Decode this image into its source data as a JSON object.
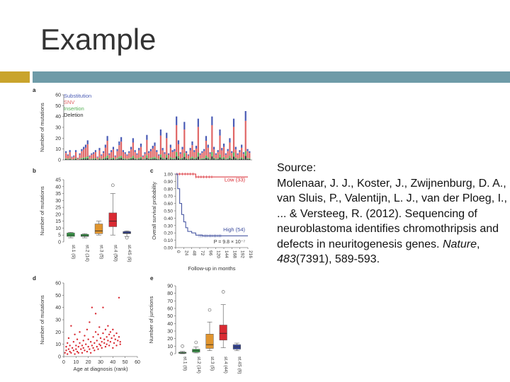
{
  "slide": {
    "title": "Example",
    "accent_colors": {
      "square": "#c9a42c",
      "bar": "#6e9ba8"
    }
  },
  "source": {
    "heading": "Source:",
    "citation_plain": "Molenaar, J. J., Koster, J., Zwijnenburg, D. A., van Sluis, P., Valentijn, L. J., van der Ploeg, I., ... & Versteeg, R. (2012). Sequencing of neuroblastoma identifies chromothripsis and defects in neuritogenesis genes.",
    "journal": "Nature",
    "volume": "483",
    "issue_pages": "(7391), 589-593."
  },
  "chart_data": [
    {
      "panel": "a",
      "type": "bar",
      "stacked": true,
      "ylabel": "Number of mutations",
      "ylim": [
        0,
        60
      ],
      "yticks": [
        0,
        10,
        20,
        30,
        40,
        50,
        60
      ],
      "legend_position": "top-left",
      "legend": [
        "Substitution",
        "SNV",
        "Insertion",
        "Deletion"
      ],
      "colors": {
        "Substitution": "#4a5bb5",
        "SNV": "#e06666",
        "Insertion": "#55b055",
        "Deletion": "#2a2a2a"
      },
      "totals": [
        8,
        5,
        9,
        3,
        4,
        9,
        2,
        6,
        10,
        12,
        14,
        18,
        4,
        6,
        7,
        9,
        3,
        11,
        5,
        8,
        14,
        22,
        6,
        9,
        12,
        4,
        10,
        17,
        21,
        9,
        7,
        5,
        8,
        12,
        20,
        9,
        6,
        11,
        15,
        4,
        7,
        23,
        8,
        10,
        13,
        16,
        9,
        5,
        28,
        11,
        7,
        25,
        6,
        14,
        9,
        10,
        40,
        18,
        7,
        12,
        35,
        8,
        5,
        11,
        17,
        9,
        13,
        38,
        6,
        8,
        10,
        22,
        14,
        7,
        40,
        12,
        6,
        9,
        28,
        11,
        15,
        6,
        10,
        20,
        8,
        38,
        12,
        6,
        9,
        14,
        7,
        45,
        10,
        8
      ]
    },
    {
      "panel": "b",
      "type": "box",
      "ylabel": "Number of mutations",
      "ylim": [
        0,
        45
      ],
      "yticks": [
        0,
        5,
        10,
        15,
        20,
        25,
        30,
        35,
        40,
        45
      ],
      "categories": [
        "st.1 (9)",
        "st.2 (14)",
        "st.3 (5)",
        "st.4 (50)",
        "st.4S (9)"
      ],
      "colors": [
        "#3aa14a",
        "#3aa14a",
        "#e0952f",
        "#d92a32",
        "#3a4a9c"
      ],
      "boxes": [
        {
          "min": 3,
          "q1": 4,
          "median": 5,
          "q3": 6.5,
          "max": 7
        },
        {
          "min": 3,
          "q1": 4,
          "median": 4.5,
          "q3": 5.5,
          "max": 6
        },
        {
          "min": 5,
          "q1": 6,
          "median": 8,
          "q3": 13,
          "max": 15
        },
        {
          "min": 5,
          "q1": 11,
          "median": 15,
          "q3": 21,
          "max": 35,
          "outliers": [
            41
          ]
        },
        {
          "min": 4,
          "q1": 6,
          "median": 6.5,
          "q3": 7.5,
          "max": 8,
          "outliers": [
            3
          ]
        }
      ]
    },
    {
      "panel": "c",
      "type": "line",
      "ylabel": "Overall survival probability",
      "xlabel": "Follow-up in months",
      "ylim": [
        0,
        1.0
      ],
      "yticks": [
        0,
        0.1,
        0.2,
        0.3,
        0.4,
        0.5,
        0.6,
        0.7,
        0.8,
        0.9,
        1.0
      ],
      "xticks": [
        0,
        24,
        48,
        72,
        96,
        120,
        144,
        168,
        192,
        216
      ],
      "xlim": [
        0,
        216
      ],
      "series": [
        {
          "name": "Low (33)",
          "color": "#d92a32",
          "x": [
            0,
            60,
            60,
            216
          ],
          "y": [
            1.0,
            1.0,
            0.96,
            0.96
          ]
        },
        {
          "name": "High (54)",
          "color": "#3a4a9c",
          "x": [
            0,
            6,
            12,
            18,
            24,
            30,
            36,
            48,
            60,
            80,
            100,
            130,
            216
          ],
          "y": [
            1.0,
            0.8,
            0.6,
            0.45,
            0.35,
            0.27,
            0.22,
            0.2,
            0.17,
            0.16,
            0.16,
            0.16,
            0.16
          ]
        }
      ],
      "annotation": "P = 9.8 × 10⁻⁷"
    },
    {
      "panel": "d",
      "type": "scatter",
      "ylabel": "Number of mutations",
      "xlabel": "Age at diagnosis (rank)",
      "xlim": [
        0,
        60
      ],
      "ylim": [
        0,
        60
      ],
      "xticks": [
        0,
        10,
        20,
        30,
        40,
        50,
        60
      ],
      "yticks": [
        0,
        10,
        20,
        30,
        40,
        50,
        60
      ],
      "color": "#d92a32",
      "points": [
        [
          1,
          3
        ],
        [
          2,
          5
        ],
        [
          2,
          8
        ],
        [
          3,
          2
        ],
        [
          3,
          11
        ],
        [
          4,
          6
        ],
        [
          4,
          15
        ],
        [
          5,
          4
        ],
        [
          5,
          9
        ],
        [
          6,
          3
        ],
        [
          6,
          25
        ],
        [
          7,
          7
        ],
        [
          8,
          5
        ],
        [
          8,
          12
        ],
        [
          9,
          2
        ],
        [
          9,
          18
        ],
        [
          10,
          6
        ],
        [
          10,
          9
        ],
        [
          11,
          4
        ],
        [
          11,
          14
        ],
        [
          12,
          8
        ],
        [
          12,
          3
        ],
        [
          13,
          11
        ],
        [
          13,
          20
        ],
        [
          14,
          6
        ],
        [
          15,
          9
        ],
        [
          15,
          3
        ],
        [
          16,
          13
        ],
        [
          16,
          7
        ],
        [
          17,
          5
        ],
        [
          17,
          17
        ],
        [
          18,
          10
        ],
        [
          19,
          4
        ],
        [
          19,
          22
        ],
        [
          20,
          8
        ],
        [
          20,
          14
        ],
        [
          21,
          6
        ],
        [
          21,
          28
        ],
        [
          22,
          12
        ],
        [
          22,
          3
        ],
        [
          23,
          9
        ],
        [
          23,
          40
        ],
        [
          24,
          16
        ],
        [
          24,
          7
        ],
        [
          25,
          11
        ],
        [
          25,
          5
        ],
        [
          26,
          20
        ],
        [
          26,
          35
        ],
        [
          27,
          8
        ],
        [
          27,
          13
        ],
        [
          28,
          18
        ],
        [
          28,
          6
        ],
        [
          29,
          10
        ],
        [
          29,
          24
        ],
        [
          30,
          15
        ],
        [
          30,
          9
        ],
        [
          31,
          12
        ],
        [
          31,
          7
        ],
        [
          32,
          40
        ],
        [
          32,
          19
        ],
        [
          33,
          11
        ],
        [
          33,
          14
        ],
        [
          34,
          22
        ],
        [
          34,
          8
        ],
        [
          35,
          16
        ],
        [
          35,
          10
        ],
        [
          36,
          25
        ],
        [
          36,
          13
        ],
        [
          37,
          9
        ],
        [
          37,
          18
        ],
        [
          38,
          20
        ],
        [
          38,
          12
        ],
        [
          39,
          15
        ],
        [
          40,
          7
        ],
        [
          40,
          22
        ],
        [
          41,
          11
        ],
        [
          41,
          17
        ],
        [
          42,
          14
        ],
        [
          43,
          9
        ],
        [
          43,
          19
        ],
        [
          44,
          13
        ],
        [
          45,
          48
        ],
        [
          45,
          16
        ],
        [
          46,
          10
        ],
        [
          46,
          12
        ]
      ]
    },
    {
      "panel": "e",
      "type": "box",
      "ylabel": "Number of junctions",
      "ylim": [
        0,
        90
      ],
      "yticks": [
        0,
        10,
        20,
        30,
        40,
        50,
        60,
        70,
        80,
        90
      ],
      "categories": [
        "st.1 (9)",
        "st.2 (14)",
        "st.3 (5)",
        "st.4 (44)",
        "st.4S (9)"
      ],
      "colors": [
        "#3aa14a",
        "#3aa14a",
        "#e0952f",
        "#d92a32",
        "#3a4a9c"
      ],
      "boxes": [
        {
          "min": 0,
          "q1": 0.5,
          "median": 1,
          "q3": 2,
          "max": 3,
          "outliers": [
            10
          ]
        },
        {
          "min": 1,
          "q1": 2,
          "median": 4,
          "q3": 6,
          "max": 9,
          "outliers": [
            15
          ]
        },
        {
          "min": 4,
          "q1": 7,
          "median": 12,
          "q3": 26,
          "max": 42,
          "outliers": [
            58
          ]
        },
        {
          "min": 8,
          "q1": 18,
          "median": 27,
          "q3": 38,
          "max": 65,
          "outliers": [
            82
          ]
        },
        {
          "min": 4,
          "q1": 6,
          "median": 9,
          "q3": 12,
          "max": 14
        }
      ]
    }
  ]
}
